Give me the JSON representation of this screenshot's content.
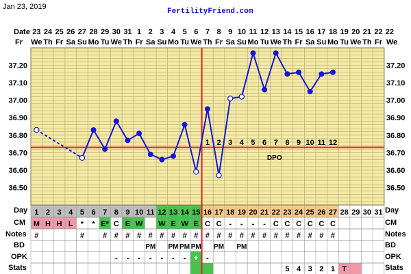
{
  "header": {
    "chart_date": "Jan 23, 2019",
    "site": "FertilityFriend.com"
  },
  "colors": {
    "background": "#f4eaa6",
    "grid": "#b5ab6f",
    "line": "#1414dd",
    "coverline": "#dd2222",
    "ovulation": "#dd2222",
    "green": "#49c24d",
    "orange": "#f6c98a",
    "pink": "#ee9aa8",
    "tick_grey": "#d6d6d6"
  },
  "row_labels": {
    "date": "Date",
    "day": "Day",
    "cm": "CM",
    "notes": "Notes",
    "bd": "BD",
    "opk": "OPK",
    "stats": "Stats"
  },
  "chart_data": {
    "type": "line",
    "title": "",
    "x": [
      "23",
      "24",
      "25",
      "26",
      "27",
      "28",
      "29",
      "30",
      "31",
      "1",
      "2",
      "3",
      "4",
      "5",
      "6",
      "7",
      "8",
      "9",
      "10",
      "11",
      "12",
      "13",
      "14",
      "15",
      "16",
      "17",
      "18",
      "19",
      "20",
      "21",
      "22"
    ],
    "weekdays": [
      "We",
      "Th",
      "Fr",
      "Sa",
      "Su",
      "Mo",
      "Tu",
      "We",
      "Th",
      "Fr",
      "Sa",
      "Su",
      "Mo",
      "Tu",
      "We",
      "Th",
      "Fr",
      "Sa",
      "Su",
      "Mo",
      "Tu",
      "We",
      "Th",
      "Fr",
      "Sa",
      "Su",
      "Mo",
      "Tu",
      "We",
      "Th",
      "Fr"
    ],
    "ylim": [
      36.4,
      37.3
    ],
    "y_ticks": [
      "37.20",
      "37.10",
      "37.00",
      "36.90",
      "36.80",
      "36.70",
      "36.60",
      "36.50"
    ],
    "temperatures": [
      36.83,
      null,
      null,
      null,
      36.67,
      36.83,
      36.72,
      36.88,
      36.77,
      36.81,
      36.69,
      36.66,
      36.68,
      36.86,
      36.59,
      36.95,
      36.57,
      37.01,
      37.02,
      37.27,
      37.06,
      37.27,
      37.15,
      37.16,
      37.05,
      37.15,
      37.16,
      null,
      null,
      null,
      null
    ],
    "hollow_points": [
      0,
      4,
      14,
      16,
      17,
      18
    ],
    "dashed_segments": [
      [
        0,
        4
      ]
    ],
    "coverline": 36.73,
    "ovulation_day_index": 14,
    "dpo_numbers": [
      "1",
      "2",
      "3",
      "4",
      "5",
      "6",
      "7",
      "8",
      "9",
      "10",
      "11",
      "12"
    ],
    "dpo_start_index": 15,
    "dpo_label": "DPO"
  },
  "table": {
    "day": [
      "1",
      "2",
      "3",
      "4",
      "5",
      "6",
      "7",
      "8",
      "9",
      "10",
      "11",
      "12",
      "13",
      "14",
      "15",
      "16",
      "17",
      "18",
      "19",
      "20",
      "21",
      "22",
      "23",
      "24",
      "25",
      "26",
      "27",
      "28",
      "29",
      "30",
      "31"
    ],
    "day_colors": [
      "#bdbdbd",
      "#bdbdbd",
      "#bdbdbd",
      "#bdbdbd",
      "#bdbdbd",
      "#bdbdbd",
      "#bdbdbd",
      "#bdbdbd",
      "#bdbdbd",
      "#bdbdbd",
      "#bdbdbd",
      "#49c24d",
      "#49c24d",
      "#49c24d",
      "#49c24d",
      "#f6c98a",
      "#f6c98a",
      "#f6c98a",
      "#f6c98a",
      "#f6c98a",
      "#f6c98a",
      "#f6c98a",
      "#f6c98a",
      "#f6c98a",
      "#f6c98a",
      "#f6c98a",
      "#f6c98a",
      "#ffffff",
      "#ffffff",
      "#ffffff",
      "#ffffff"
    ],
    "cm": [
      "M",
      "H",
      "H",
      "L",
      "*",
      "*",
      "E*",
      "C",
      "E",
      "W",
      "",
      "W",
      "E",
      "W",
      "E",
      "C",
      "C",
      "-",
      "-",
      "-",
      "-",
      "C",
      "C",
      "C",
      "C",
      "C",
      "C",
      "",
      "",
      "",
      ""
    ],
    "cm_colors": [
      "#ee9aa8",
      "#ee9aa8",
      "#ee9aa8",
      "#ee9aa8",
      "",
      "",
      "#49c24d",
      "",
      "#49c24d",
      "#49c24d",
      "",
      "#49c24d",
      "#49c24d",
      "#49c24d",
      "#49c24d",
      "",
      "",
      "",
      "",
      "",
      "",
      "",
      "",
      "",
      "",
      "",
      "",
      "",
      "",
      "",
      ""
    ],
    "notes": [
      "#",
      "",
      "",
      "",
      "#",
      "",
      "#",
      "#",
      "#",
      "#",
      "#",
      "#",
      "#",
      "#",
      "#",
      "#",
      "#",
      "#",
      "#",
      "#",
      "#",
      "#",
      "#",
      "#",
      "#",
      "#",
      "#",
      "",
      "",
      "",
      ""
    ],
    "bd": [
      "",
      "",
      "",
      "",
      "",
      "",
      "",
      "",
      "",
      "",
      "PM",
      "",
      "PM",
      "PM",
      "PM",
      "",
      "PM",
      "",
      "PM",
      "",
      "",
      "",
      "",
      "",
      "",
      "",
      "",
      "",
      "",
      "",
      ""
    ],
    "opk": [
      "",
      "",
      "",
      "",
      "",
      "",
      "",
      "-",
      "-",
      "-",
      "-",
      "-",
      "-",
      "-",
      "+",
      "-",
      "",
      "",
      "",
      "",
      "",
      "",
      "",
      "",
      "",
      "",
      "",
      "",
      "",
      "",
      ""
    ],
    "opk_colors": [
      "",
      "",
      "",
      "",
      "",
      "",
      "",
      "",
      "",
      "",
      "",
      "",
      "",
      "",
      "#49c24d",
      "",
      "",
      "",
      "",
      "",
      "",
      "",
      "",
      "",
      "",
      "",
      "",
      "",
      "",
      "",
      ""
    ],
    "stats": [
      "",
      "",
      "",
      "",
      "",
      "",
      "",
      "",
      "",
      "",
      "",
      "",
      "",
      "",
      "",
      "",
      "",
      "",
      "",
      "",
      "",
      "",
      "5",
      "4",
      "3",
      "2",
      "1",
      "T",
      "",
      "",
      ""
    ],
    "stats_colors": [
      "",
      "",
      "",
      "",
      "",
      "",
      "",
      "",
      "",
      "",
      "",
      "",
      "",
      "",
      "#49c24d",
      "#49c24d",
      "",
      "",
      "",
      "",
      "",
      "",
      "",
      "",
      "",
      "",
      "",
      "#ee9aa8",
      "#ee9aa8",
      "",
      ""
    ]
  }
}
